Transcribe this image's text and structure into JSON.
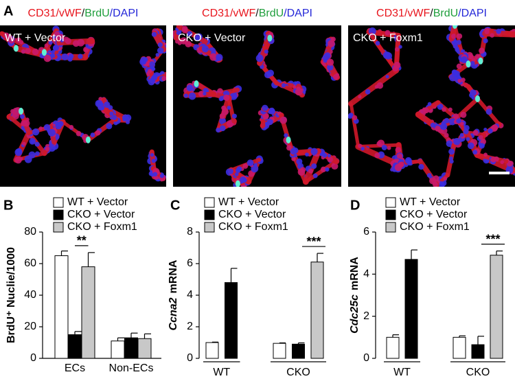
{
  "panel_a": {
    "letter": "A",
    "images": [
      {
        "stain": [
          {
            "text": "CD31/vWF",
            "color": "#e8141c"
          },
          {
            "text": "/",
            "color": "#111111"
          },
          {
            "text": "BrdU",
            "color": "#1f9e3c"
          },
          {
            "text": "/DAPI",
            "color": "#2326d8"
          }
        ],
        "label": "WT + Vector"
      },
      {
        "stain": [
          {
            "text": "CD31/vWF",
            "color": "#e8141c"
          },
          {
            "text": "/",
            "color": "#111111"
          },
          {
            "text": "BrdU",
            "color": "#1f9e3c"
          },
          {
            "text": "/DAPI",
            "color": "#2326d8"
          }
        ],
        "label": "CKO + Vector"
      },
      {
        "stain": [
          {
            "text": "CD31/vWF",
            "color": "#e8141c"
          },
          {
            "text": "/",
            "color": "#111111"
          },
          {
            "text": "BrdU",
            "color": "#1f9e3c"
          },
          {
            "text": "/DAPI",
            "color": "#2326d8"
          }
        ],
        "label": "CKO + Foxm1"
      }
    ]
  },
  "chart_data": [
    {
      "type": "bar",
      "panel": "B",
      "y_label": [
        {
          "text": "BrdU⁺ Nuclie/1000",
          "italic": false
        }
      ],
      "categories": [
        "ECs",
        "Non-ECs"
      ],
      "ylim": [
        0,
        80
      ],
      "yticks": [
        0,
        20,
        40,
        60,
        80
      ],
      "group_lines": false,
      "series": [
        {
          "name": "WT + Vector",
          "color": "#ffffff",
          "values": [
            65,
            11
          ],
          "errors": [
            3,
            2
          ]
        },
        {
          "name": "CKO + Vector",
          "color": "#000000",
          "values": [
            15,
            13
          ],
          "errors": [
            2,
            3
          ]
        },
        {
          "name": "CKO + Foxm1",
          "color": "#c8c8c8",
          "values": [
            58,
            12.5
          ],
          "errors": [
            9,
            3
          ]
        }
      ],
      "annotation": {
        "text": "**",
        "category": 0,
        "series": [
          1,
          2
        ]
      }
    },
    {
      "type": "bar",
      "panel": "C",
      "y_label": [
        {
          "text": "Ccna2",
          "italic": true
        },
        {
          "text": "mRNA",
          "italic": false
        }
      ],
      "categories": [
        "WT",
        "CKO"
      ],
      "ylim": [
        0,
        8
      ],
      "yticks": [
        0,
        2,
        4,
        6,
        8
      ],
      "group_lines": true,
      "series": [
        {
          "name": "WT + Vector",
          "color": "#ffffff",
          "values": [
            1,
            0.95
          ],
          "errors": [
            0.03,
            0.03
          ]
        },
        {
          "name": "CKO + Vector",
          "color": "#000000",
          "values": [
            4.8,
            0.9
          ],
          "errors": [
            0.9,
            0.08
          ]
        },
        {
          "name": "CKO + Foxm1",
          "color": "#c8c8c8",
          "values": [
            null,
            6.1
          ],
          "errors": [
            null,
            0.55
          ]
        }
      ],
      "annotation": {
        "text": "***",
        "category": 1,
        "series": [
          2
        ]
      }
    },
    {
      "type": "bar",
      "panel": "D",
      "y_label": [
        {
          "text": "Cdc25c",
          "italic": true
        },
        {
          "text": "mRNA",
          "italic": false
        }
      ],
      "categories": [
        "WT",
        "CKO"
      ],
      "ylim": [
        0,
        6
      ],
      "yticks": [
        0,
        2,
        4,
        6
      ],
      "group_lines": true,
      "series": [
        {
          "name": "WT + Vector",
          "color": "#ffffff",
          "values": [
            1,
            1
          ],
          "errors": [
            0.12,
            0.07
          ]
        },
        {
          "name": "CKO + Vector",
          "color": "#000000",
          "values": [
            4.7,
            0.65
          ],
          "errors": [
            0.45,
            0.4
          ]
        },
        {
          "name": "CKO + Foxm1",
          "color": "#c8c8c8",
          "values": [
            null,
            4.9
          ],
          "errors": [
            null,
            0.2
          ]
        }
      ],
      "annotation": {
        "text": "***",
        "category": 1,
        "series": [
          2
        ]
      }
    }
  ]
}
